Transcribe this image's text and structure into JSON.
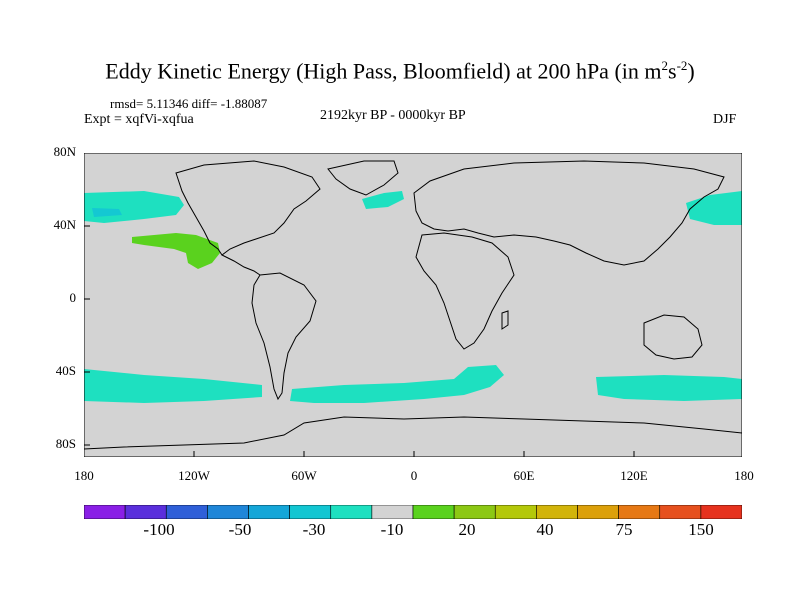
{
  "title": "Eddy Kinetic Energy (High Pass, Bloomfield) at 200 hPa (in m",
  "title_sup1": "2",
  "title_mid": "s",
  "title_sup2": "-2",
  "title_end": ")",
  "rmsd_line": "rmsd= 5.11346 diff= -1.88087",
  "expt_line": "Expt = xqfVi-xqfua",
  "period": "2192kyr BP - 0000kyr BP",
  "season": "DJF",
  "y_ticks": [
    "80N",
    "40N",
    "0",
    "40S",
    "80S"
  ],
  "x_ticks": [
    "180",
    "120W",
    "60W",
    "0",
    "60E",
    "120E",
    "180"
  ],
  "colorbar_labels": [
    "-100",
    "-50",
    "-30",
    "-10",
    "20",
    "40",
    "75",
    "150"
  ],
  "colorbar_colors": [
    "#8a1fe6",
    "#5a2fdc",
    "#2f5fd8",
    "#1f86d8",
    "#14a6d8",
    "#12c6d2",
    "#1ee0c0",
    "#d3d3d3",
    "#5ad21e",
    "#8cc814",
    "#b4c80a",
    "#d2b40a",
    "#dca00a",
    "#e67814",
    "#e6501e",
    "#e6321e"
  ],
  "map_colors": {
    "background": "#d3d3d3",
    "negative_small": "#1ee0c0",
    "negative_mid": "#14c8d2",
    "positive_small": "#5ad21e"
  }
}
